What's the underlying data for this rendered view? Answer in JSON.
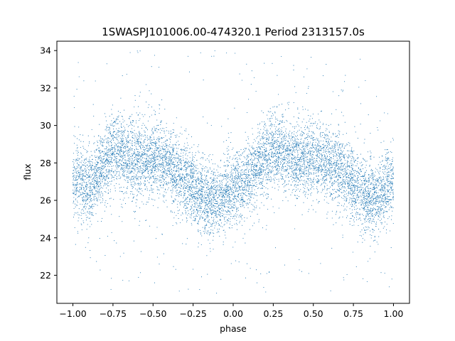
{
  "chart_data": {
    "type": "scatter",
    "title": "1SWASPJ101006.00-474320.1 Period 2313157.0s",
    "xlabel": "phase",
    "ylabel": "flux",
    "xlim": [
      -1.1,
      1.1
    ],
    "ylim": [
      20.5,
      34.5
    ],
    "xticks": [
      -1.0,
      -0.75,
      -0.5,
      -0.25,
      0.0,
      0.25,
      0.5,
      0.75,
      1.0
    ],
    "xtick_labels": [
      "−1.00",
      "−0.75",
      "−0.50",
      "−0.25",
      "0.00",
      "0.25",
      "0.50",
      "0.75",
      "1.00"
    ],
    "yticks": [
      22,
      24,
      26,
      28,
      30,
      32,
      34
    ],
    "ytick_labels": [
      "22",
      "24",
      "26",
      "28",
      "30",
      "32",
      "34"
    ],
    "grid": false,
    "legend": "none",
    "colors": {
      "points": "#1f77b4"
    },
    "trend": {
      "phase": [
        -1.0,
        -0.9,
        -0.75,
        -0.6,
        -0.45,
        -0.3,
        -0.15,
        -0.1,
        0.0,
        0.1,
        0.25,
        0.4,
        0.55,
        0.7,
        0.85,
        0.9,
        1.0
      ],
      "flux": [
        27.3,
        26.6,
        28.7,
        28.1,
        28.3,
        27.1,
        25.9,
        26.0,
        26.7,
        27.3,
        28.8,
        28.2,
        28.2,
        27.4,
        26.0,
        26.1,
        27.0
      ]
    },
    "scatter_sd": 1.0,
    "outlier_range": [
      21.0,
      34.0
    ],
    "n_points": 9000
  }
}
